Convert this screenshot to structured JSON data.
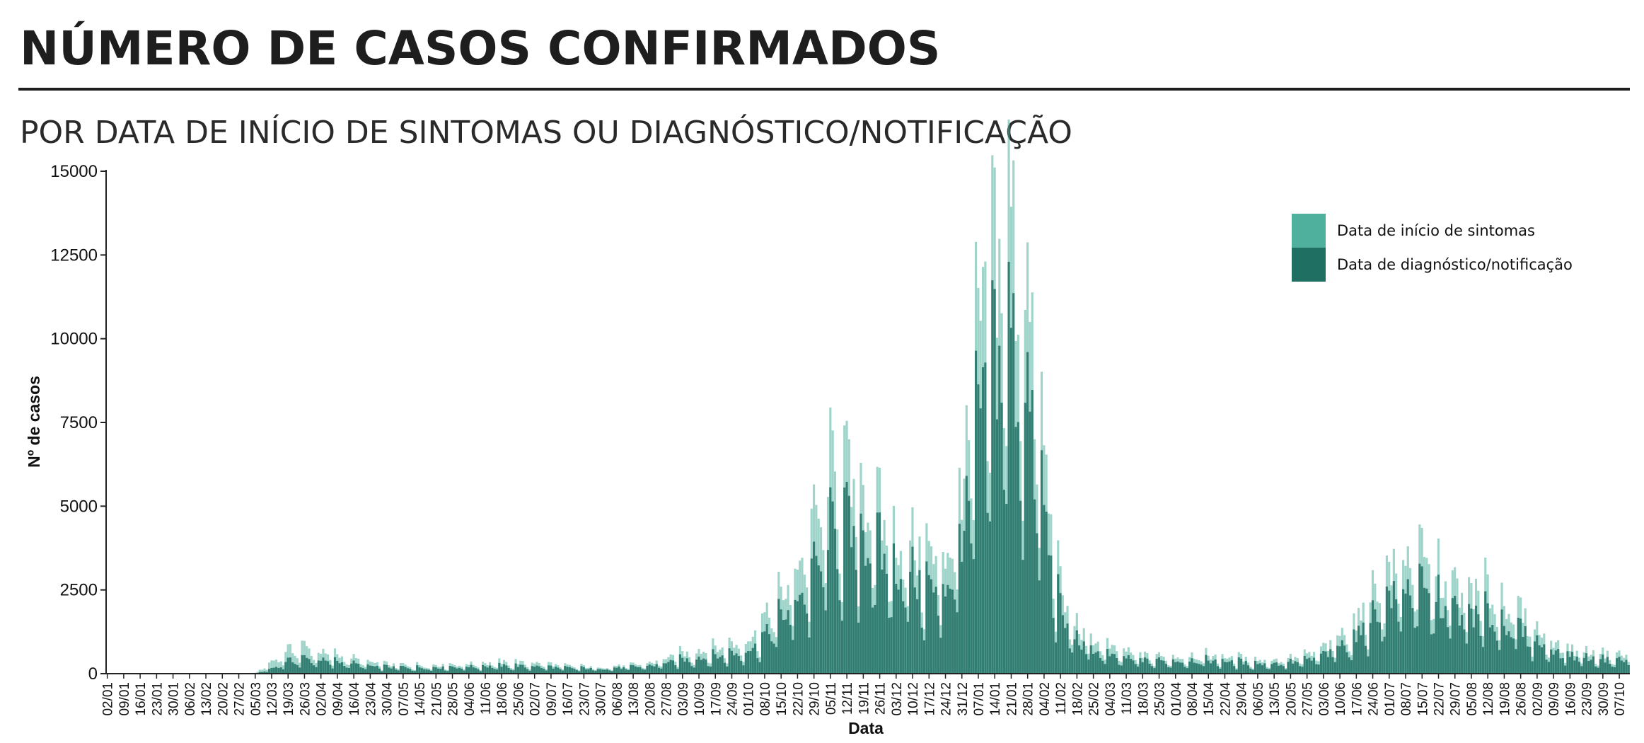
{
  "header": {
    "title": "NÚMERO DE CASOS CONFIRMADOS",
    "subtitle": "POR DATA DE INÍCIO DE SINTOMAS OU DIAGNÓSTICO/NOTIFICAÇÃO"
  },
  "chart_data": {
    "type": "bar",
    "title": "NÚMERO DE CASOS CONFIRMADOS",
    "subtitle": "POR DATA DE INÍCIO DE SINTOMAS OU DIAGNÓSTICO/NOTIFICAÇÃO",
    "xlabel": "Data",
    "ylabel": "Nº de casos",
    "ylim": [
      0,
      15000
    ],
    "yticks": [
      "0",
      "2500",
      "5000",
      "7500",
      "10000",
      "12500",
      "15000"
    ],
    "x_start": "2020-01-02",
    "x_end": "2021-10-11",
    "x_tick_labels": [
      "02/01",
      "09/01",
      "16/01",
      "23/01",
      "30/01",
      "06/02",
      "13/02",
      "20/02",
      "27/02",
      "05/03",
      "12/03",
      "19/03",
      "26/03",
      "02/04",
      "09/04",
      "16/04",
      "23/04",
      "30/04",
      "07/05",
      "14/05",
      "21/05",
      "28/05",
      "04/06",
      "11/06",
      "18/06",
      "25/06",
      "02/07",
      "09/07",
      "16/07",
      "23/07",
      "30/07",
      "06/08",
      "13/08",
      "20/08",
      "27/08",
      "03/09",
      "10/09",
      "17/09",
      "24/09",
      "01/10",
      "08/10",
      "15/10",
      "22/10",
      "29/10",
      "05/11",
      "12/11",
      "19/11",
      "26/11",
      "03/12",
      "10/12",
      "17/12",
      "24/12",
      "31/12",
      "07/01",
      "14/01",
      "21/01",
      "28/01",
      "04/02",
      "11/02",
      "18/02",
      "25/02",
      "04/03",
      "11/03",
      "18/03",
      "25/03",
      "01/04",
      "08/04",
      "15/04",
      "22/04",
      "29/04",
      "06/05",
      "13/05",
      "20/05",
      "27/05",
      "03/06",
      "10/06",
      "17/06",
      "24/06",
      "01/07",
      "08/07",
      "15/07",
      "22/07",
      "29/07",
      "05/08",
      "12/08",
      "19/08",
      "26/08",
      "02/09",
      "09/09",
      "16/09",
      "23/09",
      "30/09",
      "07/10"
    ],
    "legend_position": "top-right",
    "series": [
      {
        "name": "Data de início de sintomas",
        "color": "#4fb09e",
        "weekly_values": [
          0,
          0,
          0,
          0,
          0,
          0,
          0,
          0,
          0,
          20,
          350,
          700,
          800,
          620,
          550,
          450,
          330,
          280,
          260,
          250,
          260,
          270,
          290,
          310,
          330,
          330,
          320,
          280,
          230,
          210,
          200,
          220,
          260,
          320,
          450,
          600,
          680,
          750,
          850,
          1000,
          1600,
          2300,
          3300,
          4300,
          6000,
          5800,
          5400,
          4600,
          4000,
          3800,
          3500,
          3400,
          5500,
          10000,
          12500,
          13500,
          11000,
          6500,
          2400,
          1400,
          1000,
          750,
          650,
          550,
          500,
          500,
          550,
          550,
          500,
          450,
          400,
          400,
          450,
          550,
          750,
          1100,
          1500,
          2400,
          3100,
          3500,
          3400,
          3000,
          2600,
          2500,
          2400,
          2200,
          1800,
          1300,
          950,
          750,
          650,
          600,
          550
        ]
      },
      {
        "name": "Data de diagnóstico/notificação",
        "color": "#1f6f63",
        "weekly_values": [
          0,
          0,
          0,
          0,
          0,
          0,
          0,
          0,
          0,
          5,
          150,
          380,
          450,
          400,
          360,
          300,
          220,
          200,
          190,
          180,
          190,
          200,
          210,
          220,
          230,
          230,
          220,
          200,
          170,
          160,
          150,
          170,
          200,
          240,
          320,
          420,
          470,
          520,
          600,
          700,
          1100,
          1700,
          2300,
          3000,
          4200,
          4400,
          4100,
          3600,
          3100,
          2900,
          2600,
          2500,
          4000,
          7500,
          9500,
          10000,
          8200,
          4800,
          1800,
          1000,
          700,
          520,
          450,
          400,
          380,
          380,
          400,
          400,
          380,
          340,
          300,
          300,
          340,
          400,
          550,
          800,
          1100,
          1700,
          2300,
          2600,
          2500,
          2200,
          1900,
          1800,
          1700,
          1550,
          1300,
          950,
          700,
          560,
          480,
          440,
          400
        ]
      }
    ],
    "annotations": []
  }
}
